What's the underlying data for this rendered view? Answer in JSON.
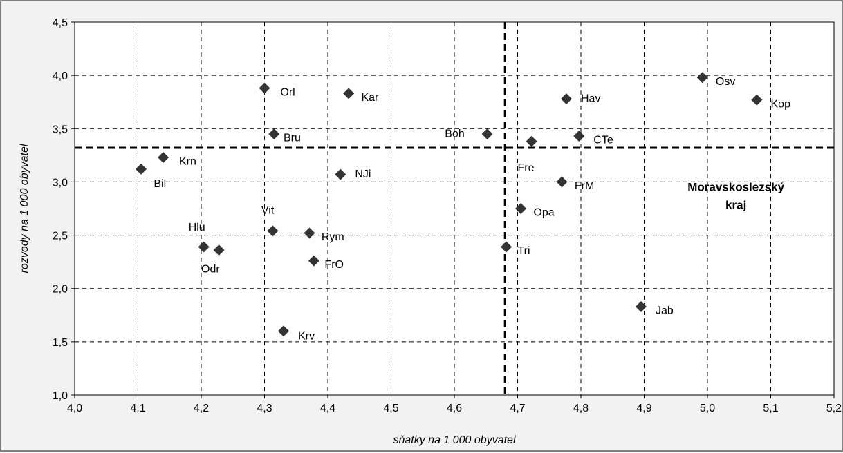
{
  "chart_data": {
    "type": "scatter",
    "xlabel": "sňatky na 1 000 obyvatel",
    "ylabel": "rozvody na 1 000 obyvatel",
    "xlim": [
      4.0,
      5.2
    ],
    "ylim": [
      1.0,
      4.5
    ],
    "x_ticks": [
      "4,0",
      "4,1",
      "4,2",
      "4,3",
      "4,4",
      "4,5",
      "4,6",
      "4,7",
      "4,8",
      "4,9",
      "5,0",
      "5,1",
      "5,2"
    ],
    "y_ticks": [
      "1,0",
      "1,5",
      "2,0",
      "2,5",
      "3,0",
      "3,5",
      "4,0",
      "4,5"
    ],
    "grid": true,
    "marker": "diamond",
    "marker_color": "#333333",
    "reference_lines": {
      "x": 4.68,
      "y": 3.32
    },
    "annotation": {
      "line1": "Moravskoslezský",
      "line2": "kraj",
      "x": 5.045,
      "y": 2.85
    },
    "points": [
      {
        "label": "Bil",
        "x": 4.105,
        "y": 3.12,
        "lx": 4.125,
        "ly": 2.99
      },
      {
        "label": "Krn",
        "x": 4.14,
        "y": 3.23,
        "lx": 4.165,
        "ly": 3.2
      },
      {
        "label": "Hlu",
        "x": 4.204,
        "y": 2.39,
        "lx": 4.18,
        "ly": 2.58
      },
      {
        "label": "Odr",
        "x": 4.228,
        "y": 2.36,
        "lx": 4.2,
        "ly": 2.19
      },
      {
        "label": "Orl",
        "x": 4.3,
        "y": 3.88,
        "lx": 4.325,
        "ly": 3.85
      },
      {
        "label": "Bru",
        "x": 4.315,
        "y": 3.45,
        "lx": 4.33,
        "ly": 3.42
      },
      {
        "label": "Vit",
        "x": 4.313,
        "y": 2.54,
        "lx": 4.295,
        "ly": 2.74
      },
      {
        "label": "Krv",
        "x": 4.33,
        "y": 1.6,
        "lx": 4.353,
        "ly": 1.56
      },
      {
        "label": "Rym",
        "x": 4.371,
        "y": 2.52,
        "lx": 4.39,
        "ly": 2.49
      },
      {
        "label": "FrO",
        "x": 4.378,
        "y": 2.26,
        "lx": 4.395,
        "ly": 2.23
      },
      {
        "label": "NJi",
        "x": 4.42,
        "y": 3.07,
        "lx": 4.443,
        "ly": 3.08
      },
      {
        "label": "Kar",
        "x": 4.433,
        "y": 3.83,
        "lx": 4.453,
        "ly": 3.8
      },
      {
        "label": "Boh",
        "x": 4.652,
        "y": 3.45,
        "lx": 4.585,
        "ly": 3.46
      },
      {
        "label": "Tri",
        "x": 4.682,
        "y": 2.39,
        "lx": 4.7,
        "ly": 2.36
      },
      {
        "label": "Opa",
        "x": 4.705,
        "y": 2.75,
        "lx": 4.725,
        "ly": 2.72
      },
      {
        "label": "Fre",
        "x": 4.722,
        "y": 3.38,
        "lx": 4.7,
        "ly": 3.14
      },
      {
        "label": "Hav",
        "x": 4.777,
        "y": 3.78,
        "lx": 4.8,
        "ly": 3.79
      },
      {
        "label": "FrM",
        "x": 4.77,
        "y": 3.0,
        "lx": 4.79,
        "ly": 2.97
      },
      {
        "label": "CTe",
        "x": 4.797,
        "y": 3.43,
        "lx": 4.82,
        "ly": 3.4
      },
      {
        "label": "Jab",
        "x": 4.895,
        "y": 1.83,
        "lx": 4.918,
        "ly": 1.8
      },
      {
        "label": "Osv",
        "x": 4.992,
        "y": 3.98,
        "lx": 5.013,
        "ly": 3.95
      },
      {
        "label": "Kop",
        "x": 5.078,
        "y": 3.77,
        "lx": 5.1,
        "ly": 3.74
      }
    ]
  }
}
